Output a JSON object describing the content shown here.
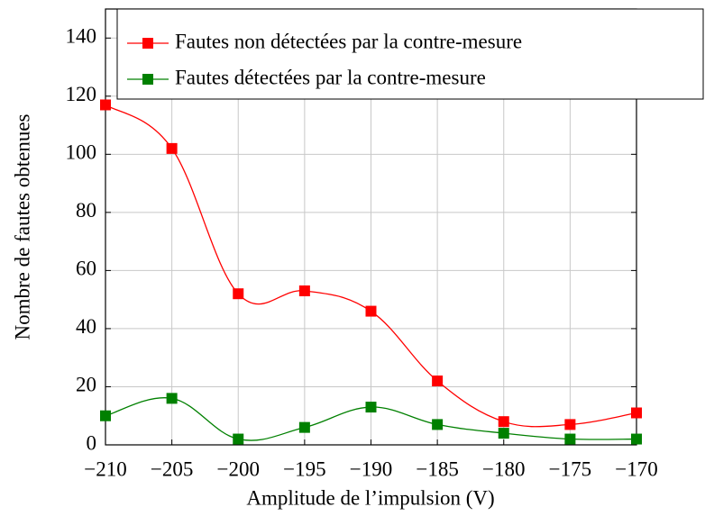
{
  "chart_data": {
    "type": "line",
    "xlabel": "Amplitude de l’impulsion (V)",
    "ylabel": "Nombre de fautes obtenues",
    "x": [
      -210,
      -205,
      -200,
      -195,
      -190,
      -185,
      -180,
      -175,
      -170
    ],
    "series": [
      {
        "name": "Fautes non détectées par la contre-mesure",
        "color": "#ff0000",
        "values": [
          117,
          102,
          52,
          53,
          46,
          22,
          8,
          7,
          11
        ]
      },
      {
        "name": "Fautes détectées par la contre-mesure",
        "color": "#008000",
        "values": [
          10,
          16,
          2,
          6,
          13,
          7,
          4,
          2,
          2
        ]
      }
    ],
    "xlim": [
      -210,
      -170
    ],
    "xticks": [
      {
        "value": -210,
        "label": "−210"
      },
      {
        "value": -205,
        "label": "−205"
      },
      {
        "value": -200,
        "label": "−200"
      },
      {
        "value": -195,
        "label": "−195"
      },
      {
        "value": -190,
        "label": "−190"
      },
      {
        "value": -185,
        "label": "−185"
      },
      {
        "value": -180,
        "label": "−180"
      },
      {
        "value": -175,
        "label": "−175"
      },
      {
        "value": -170,
        "label": "−170"
      }
    ],
    "ylim": [
      0,
      150
    ],
    "yticks": [
      0,
      20,
      40,
      60,
      80,
      100,
      120,
      140
    ],
    "grid": true,
    "smooth": true,
    "legend": "upper right"
  }
}
